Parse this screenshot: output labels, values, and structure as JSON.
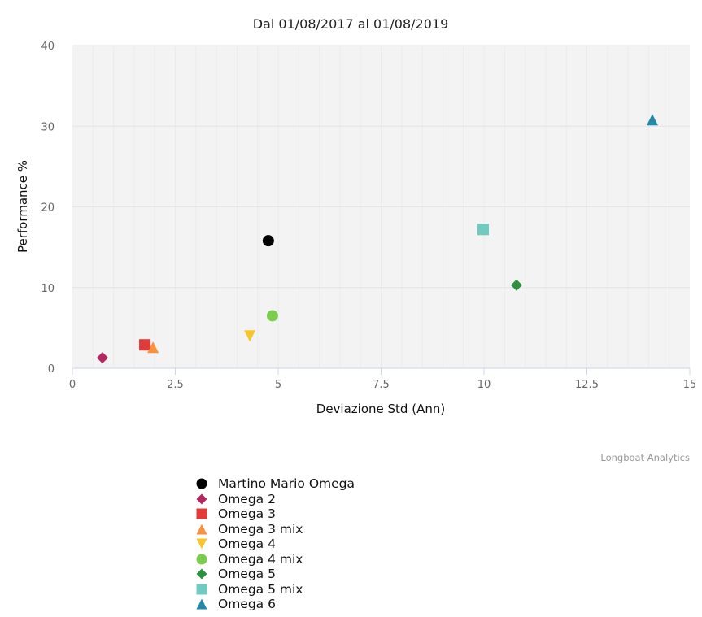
{
  "chart_data": {
    "type": "scatter",
    "title": "Dal 01/08/2017 al 01/08/2019",
    "xlabel": "Deviazione Std (Ann)",
    "ylabel": "Performance %",
    "xlim": [
      0,
      15
    ],
    "ylim": [
      0,
      40
    ],
    "xticks": [
      "0",
      "2.5",
      "5",
      "7.5",
      "10",
      "12.5",
      "15"
    ],
    "yticks": [
      "0",
      "10",
      "20",
      "30",
      "40"
    ],
    "grid": true,
    "legend_position": "bottom",
    "series": [
      {
        "name": "Martino Mario Omega",
        "marker": "circle",
        "color": "#000000",
        "x": 4.76,
        "y": 15.8
      },
      {
        "name": "Omega 2",
        "marker": "diamond",
        "color": "#b5275f",
        "x": 0.73,
        "y": 1.3
      },
      {
        "name": "Omega 3",
        "marker": "square",
        "color": "#e03a3a",
        "x": 1.76,
        "y": 2.9
      },
      {
        "name": "Omega 3 mix",
        "marker": "triangle",
        "color": "#f7913d",
        "x": 1.96,
        "y": 2.6
      },
      {
        "name": "Omega 4",
        "marker": "triangle-down",
        "color": "#f8c62a",
        "x": 4.31,
        "y": 4.0
      },
      {
        "name": "Omega 4 mix",
        "marker": "circle",
        "color": "#7ccc50",
        "x": 4.86,
        "y": 6.5
      },
      {
        "name": "Omega 5",
        "marker": "diamond",
        "color": "#2e9140",
        "x": 10.79,
        "y": 10.3
      },
      {
        "name": "Omega 5 mix",
        "marker": "square",
        "color": "#6fcbbf",
        "x": 9.98,
        "y": 17.2
      },
      {
        "name": "Omega 6",
        "marker": "triangle",
        "color": "#2389a8",
        "x": 14.09,
        "y": 30.8
      }
    ]
  },
  "credits": "Longboat Analytics"
}
